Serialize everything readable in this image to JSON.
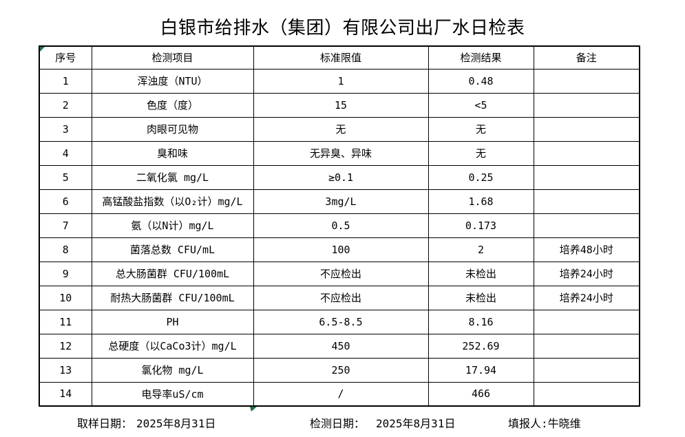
{
  "title": "白银市给排水（集团）有限公司出厂水日检表",
  "table": {
    "columns": [
      "序号",
      "检测项目",
      "标准限值",
      "检测结果",
      "备注"
    ],
    "rows": [
      {
        "no": "1",
        "item": "浑浊度（NTU）",
        "limit": "1",
        "result": "0.48",
        "remark": ""
      },
      {
        "no": "2",
        "item": "色度（度）",
        "limit": "15",
        "result": "<5",
        "remark": ""
      },
      {
        "no": "3",
        "item": "肉眼可见物",
        "limit": "无",
        "result": "无",
        "remark": ""
      },
      {
        "no": "4",
        "item": "臭和味",
        "limit": "无异臭、异味",
        "result": "无",
        "remark": ""
      },
      {
        "no": "5",
        "item": "二氧化氯 mg/L",
        "limit": "≥0.1",
        "result": "0.25",
        "remark": ""
      },
      {
        "no": "6",
        "item": "高锰酸盐指数（以O₂计）mg/L",
        "limit": "3mg/L",
        "result": "1.68",
        "remark": ""
      },
      {
        "no": "7",
        "item": "氨（以N计）mg/L",
        "limit": "0.5",
        "result": "0.173",
        "remark": ""
      },
      {
        "no": "8",
        "item": "菌落总数 CFU/mL",
        "limit": "100",
        "result": "2",
        "remark": "培养48小时"
      },
      {
        "no": "9",
        "item": "总大肠菌群 CFU/100mL",
        "limit": "不应检出",
        "result": "未检出",
        "remark": "培养24小时"
      },
      {
        "no": "10",
        "item": "耐热大肠菌群 CFU/100mL",
        "limit": "不应检出",
        "result": "未检出",
        "remark": "培养24小时"
      },
      {
        "no": "11",
        "item": "PH",
        "limit": "6.5-8.5",
        "result": "8.16",
        "remark": ""
      },
      {
        "no": "12",
        "item": "总硬度（以CaCo3计）mg/L",
        "limit": "450",
        "result": "252.69",
        "remark": ""
      },
      {
        "no": "13",
        "item": "氯化物 mg/L",
        "limit": "250",
        "result": "17.94",
        "remark": ""
      },
      {
        "no": "14",
        "item": "电导率uS/cm",
        "limit": "/",
        "result": "466",
        "remark": ""
      }
    ]
  },
  "footer": {
    "sampling_date_label": "取样日期：",
    "sampling_date": "2025年8月31日",
    "test_date_label": "检测日期：",
    "test_date": "2025年8月31日",
    "reporter_label": "填报人:",
    "reporter": "牛晓维"
  },
  "colors": {
    "marker_green": "#217346",
    "border": "#000000",
    "background": "#ffffff"
  }
}
